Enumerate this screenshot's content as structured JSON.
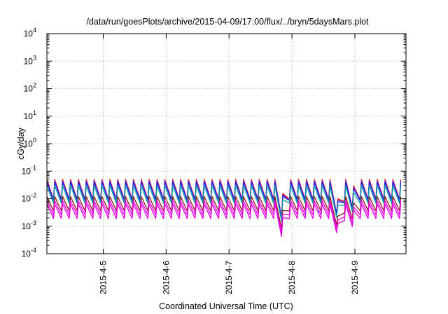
{
  "chart_data": {
    "type": "line",
    "title": "/data/run/goesPlots/archive/2015-04-09/17:00/flux/../bryn/5daysMars.plot",
    "xlabel": "Coordinated Universal Time (UTC)",
    "ylabel": "cGy/day",
    "yscale": "log",
    "ylim": [
      0.0001,
      10000
    ],
    "xlim": [
      "2015-04-04 02:30",
      "2015-04-09 19:30"
    ],
    "grid": true,
    "legend": "none",
    "y_ticks": [
      {
        "base": "10",
        "exp": "-4"
      },
      {
        "base": "10",
        "exp": "-3"
      },
      {
        "base": "10",
        "exp": "-2"
      },
      {
        "base": "10",
        "exp": "-1"
      },
      {
        "base": "10",
        "exp": "0"
      },
      {
        "base": "10",
        "exp": "1"
      },
      {
        "base": "10",
        "exp": "2"
      },
      {
        "base": "10",
        "exp": "3"
      },
      {
        "base": "10",
        "exp": "4"
      }
    ],
    "x_ticks": [
      {
        "label": "2015-4-5",
        "t": "2015-04-05 00:00"
      },
      {
        "label": "2015-4-6",
        "t": "2015-04-06 00:00"
      },
      {
        "label": "2015-4-7",
        "t": "2015-04-07 00:00"
      },
      {
        "label": "2015-4-8",
        "t": "2015-04-08 00:00"
      },
      {
        "label": "2015-4-9",
        "t": "2015-04-09 00:00"
      }
    ],
    "cycle_hours": 3,
    "series": [
      {
        "color": "#ff0000",
        "peak": 0.05,
        "trough": 0.0095
      },
      {
        "color": "#7b2fb8",
        "peak": 0.045,
        "trough": 0.009
      },
      {
        "color": "#1a1aff",
        "peak": 0.04,
        "trough": 0.0085
      },
      {
        "color": "#00a0a0",
        "peak": 0.03,
        "trough": 0.0068
      },
      {
        "color": "#8b1a1a",
        "peak": 0.012,
        "trough": 0.0036
      },
      {
        "color": "#ff00ff",
        "peak": 0.0085,
        "trough": 0.0026
      },
      {
        "color": "#e000e0",
        "peak": 0.0065,
        "trough": 0.0019
      }
    ],
    "dips": [
      {
        "t": "2015-04-07 20:00",
        "min_factor": 0.22
      },
      {
        "t": "2015-04-08 18:00",
        "min_factor": 0.12
      },
      {
        "t": "2015-04-08 23:00",
        "min_factor": 0.5
      }
    ]
  }
}
